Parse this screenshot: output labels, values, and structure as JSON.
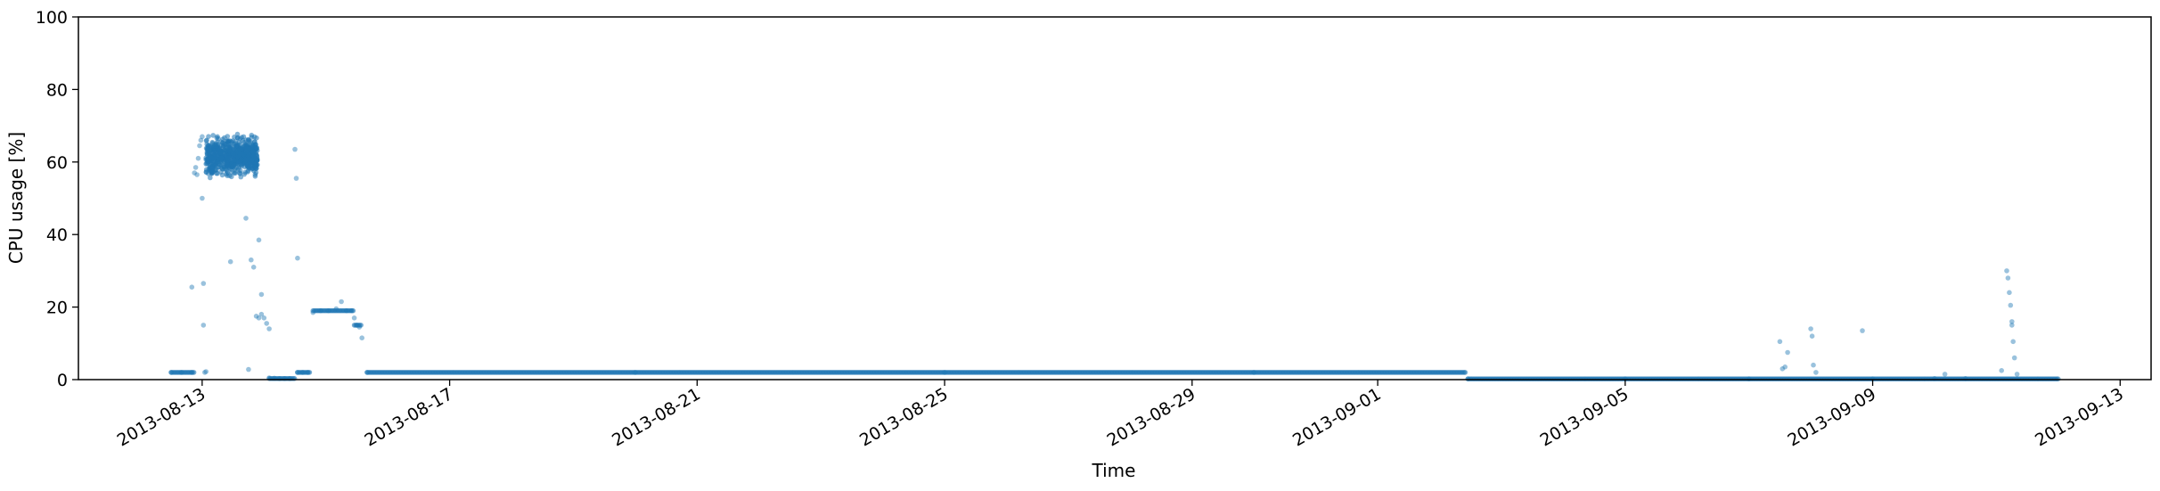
{
  "chart_data": {
    "type": "scatter",
    "title": "",
    "xlabel": "Time",
    "ylabel": "CPU usage [%]",
    "xlim": [
      "2013-08-11T00:00:00",
      "2013-09-13T12:00:00"
    ],
    "ylim": [
      0,
      100
    ],
    "x_ticks": [
      "2013-08-13",
      "2013-08-17",
      "2013-08-21",
      "2013-08-25",
      "2013-08-29",
      "2013-09-01",
      "2013-09-05",
      "2013-09-09",
      "2013-09-13"
    ],
    "y_ticks": [
      "0",
      "20",
      "40",
      "60",
      "80",
      "100"
    ],
    "grid": false,
    "legend": "none",
    "series": [
      {
        "color": "#1f77b4",
        "points": [
          [
            "2013-08-12T12:00:00",
            2.0
          ],
          [
            "2013-08-12T16:00:00",
            2.0
          ],
          [
            "2013-08-12T20:00:00",
            2.0
          ],
          [
            "2013-08-12T20:00:00",
            25.5
          ],
          [
            "2013-08-12T21:00:00",
            57.0
          ],
          [
            "2013-08-12T21:30:00",
            58.5
          ],
          [
            "2013-08-12T22:00:00",
            56.5
          ],
          [
            "2013-08-12T22:30:00",
            61.0
          ],
          [
            "2013-08-12T23:00:00",
            64.5
          ],
          [
            "2013-08-12T23:30:00",
            66.0
          ],
          [
            "2013-08-13T00:00:00",
            67.0
          ],
          [
            "2013-08-13T00:00:00",
            50.0
          ],
          [
            "2013-08-13T00:30:00",
            26.5
          ],
          [
            "2013-08-13T00:30:00",
            15.0
          ],
          [
            "2013-08-13T01:00:00",
            2.0
          ],
          [
            "2013-08-13T01:30:00",
            2.2
          ],
          [
            "2013-08-13T02:00:00",
            62.0
          ],
          [
            "2013-08-13T03:00:00",
            63.0
          ],
          [
            "2013-08-13T04:00:00",
            61.0
          ],
          [
            "2013-08-13T05:00:00",
            64.5
          ],
          [
            "2013-08-13T06:00:00",
            60.0
          ],
          [
            "2013-08-13T07:00:00",
            62.5
          ],
          [
            "2013-08-13T08:00:00",
            58.0
          ],
          [
            "2013-08-13T09:00:00",
            63.5
          ],
          [
            "2013-08-13T10:00:00",
            61.0
          ],
          [
            "2013-08-13T11:00:00",
            32.5
          ],
          [
            "2013-08-13T12:00:00",
            59.0
          ],
          [
            "2013-08-13T13:00:00",
            57.5
          ],
          [
            "2013-08-13T14:00:00",
            63.0
          ],
          [
            "2013-08-13T15:00:00",
            60.5
          ],
          [
            "2013-08-13T16:00:00",
            62.0
          ],
          [
            "2013-08-13T17:00:00",
            44.5
          ],
          [
            "2013-08-13T18:00:00",
            63.5
          ],
          [
            "2013-08-13T19:00:00",
            65.0
          ],
          [
            "2013-08-13T20:00:00",
            62.5
          ],
          [
            "2013-08-13T21:00:00",
            64.0
          ],
          [
            "2013-08-13T18:00:00",
            2.8
          ],
          [
            "2013-08-13T19:00:00",
            33.0
          ],
          [
            "2013-08-13T20:00:00",
            31.0
          ],
          [
            "2013-08-13T21:00:00",
            17.5
          ],
          [
            "2013-08-13T22:00:00",
            17.0
          ],
          [
            "2013-08-13T23:00:00",
            18.0
          ],
          [
            "2013-08-13T22:00:00",
            38.5
          ],
          [
            "2013-08-13T23:00:00",
            23.5
          ],
          [
            "2013-08-14T00:00:00",
            17.0
          ],
          [
            "2013-08-14T01:00:00",
            15.5
          ],
          [
            "2013-08-14T02:00:00",
            14.0
          ],
          [
            "2013-08-14T02:00:00",
            0.5
          ],
          [
            "2013-08-14T04:00:00",
            0.4
          ],
          [
            "2013-08-14T06:00:00",
            0.3
          ],
          [
            "2013-08-14T08:00:00",
            0.3
          ],
          [
            "2013-08-14T10:00:00",
            0.3
          ],
          [
            "2013-08-14T12:00:00",
            63.5
          ],
          [
            "2013-08-14T12:30:00",
            55.5
          ],
          [
            "2013-08-14T13:00:00",
            33.5
          ],
          [
            "2013-08-14T13:00:00",
            2.0
          ],
          [
            "2013-08-14T15:00:00",
            2.0
          ],
          [
            "2013-08-14T17:00:00",
            2.0
          ],
          [
            "2013-08-14T19:00:00",
            18.5
          ],
          [
            "2013-08-14T22:00:00",
            19.0
          ],
          [
            "2013-08-15T01:00:00",
            19.0
          ],
          [
            "2013-08-15T04:00:00",
            19.5
          ],
          [
            "2013-08-15T06:00:00",
            21.5
          ],
          [
            "2013-08-15T08:00:00",
            19.0
          ],
          [
            "2013-08-15T10:00:00",
            19.0
          ],
          [
            "2013-08-15T11:00:00",
            17.0
          ],
          [
            "2013-08-15T12:00:00",
            15.0
          ],
          [
            "2013-08-15T13:00:00",
            14.5
          ],
          [
            "2013-08-15T14:00:00",
            11.5
          ],
          [
            "2013-08-15T16:00:00",
            2.0
          ],
          [
            "2013-08-20T00:00:00",
            2.0
          ],
          [
            "2013-08-25T00:00:00",
            2.0
          ],
          [
            "2013-08-30T00:00:00",
            2.0
          ],
          [
            "2013-09-02T10:00:00",
            2.0
          ],
          [
            "2013-09-02T11:00:00",
            0.2
          ],
          [
            "2013-09-05T00:00:00",
            0.2
          ],
          [
            "2013-09-07T00:00:00",
            0.2
          ],
          [
            "2013-09-07T12:00:00",
            10.5
          ],
          [
            "2013-09-07T13:00:00",
            3.0
          ],
          [
            "2013-09-07T14:00:00",
            3.5
          ],
          [
            "2013-09-07T15:00:00",
            7.5
          ],
          [
            "2013-09-08T00:00:00",
            14.0
          ],
          [
            "2013-09-08T00:30:00",
            12.0
          ],
          [
            "2013-09-08T01:00:00",
            4.0
          ],
          [
            "2013-09-08T02:00:00",
            2.0
          ],
          [
            "2013-09-08T20:00:00",
            13.5
          ],
          [
            "2013-09-09T00:00:00",
            0.2
          ],
          [
            "2013-09-10T00:00:00",
            0.3
          ],
          [
            "2013-09-10T04:00:00",
            1.5
          ],
          [
            "2013-09-10T12:00:00",
            0.3
          ],
          [
            "2013-09-11T02:00:00",
            2.5
          ],
          [
            "2013-09-11T04:00:00",
            30.0
          ],
          [
            "2013-09-11T04:30:00",
            28.0
          ],
          [
            "2013-09-11T05:00:00",
            24.0
          ],
          [
            "2013-09-11T05:30:00",
            20.5
          ],
          [
            "2013-09-11T06:00:00",
            16.0
          ],
          [
            "2013-09-11T06:00:00",
            15.0
          ],
          [
            "2013-09-11T06:30:00",
            10.5
          ],
          [
            "2013-09-11T07:00:00",
            6.0
          ],
          [
            "2013-09-11T08:00:00",
            1.5
          ],
          [
            "2013-09-12T00:00:00",
            0.2
          ]
        ],
        "dense_runs": [
          {
            "start": "2013-08-12T12:00:00",
            "end": "2013-08-12T21:00:00",
            "value": 2.0
          },
          {
            "start": "2013-08-14T02:00:00",
            "end": "2013-08-14T12:00:00",
            "value": 0.3
          },
          {
            "start": "2013-08-14T13:00:00",
            "end": "2013-08-14T18:00:00",
            "value": 2.0
          },
          {
            "start": "2013-08-14T19:00:00",
            "end": "2013-08-15T11:00:00",
            "value": 19.0
          },
          {
            "start": "2013-08-15T11:00:00",
            "end": "2013-08-15T14:00:00",
            "value": 15.0
          },
          {
            "start": "2013-08-15T16:00:00",
            "end": "2013-09-02T10:00:00",
            "value": 2.0
          },
          {
            "start": "2013-09-02T11:00:00",
            "end": "2013-09-12T00:00:00",
            "value": 0.2
          }
        ]
      }
    ]
  }
}
